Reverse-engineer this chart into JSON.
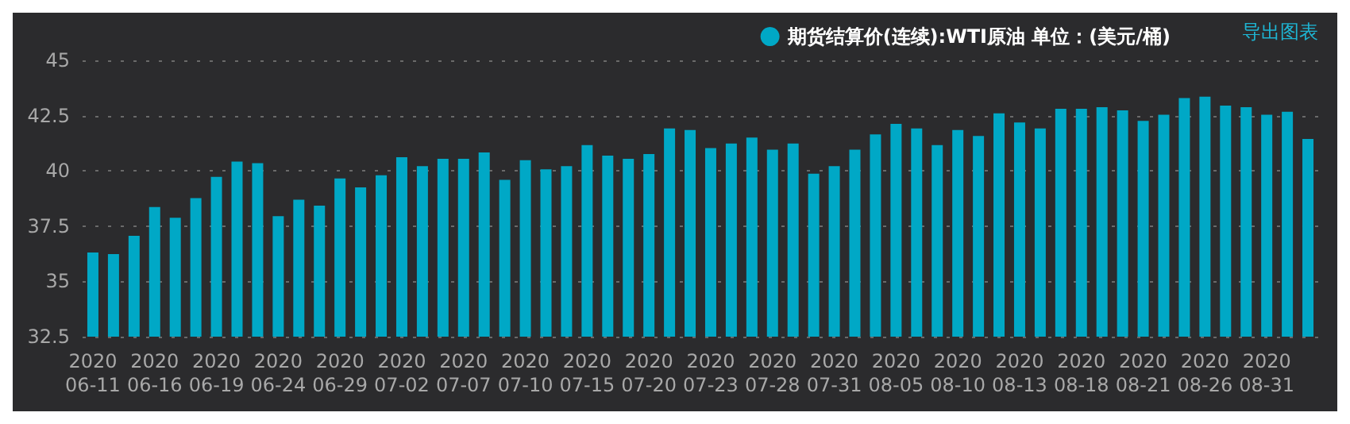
{
  "chart_data": {
    "type": "bar",
    "categories": [
      "2020\n06-11",
      null,
      null,
      "2020\n06-16",
      null,
      null,
      "2020\n06-19",
      null,
      null,
      "2020\n06-24",
      null,
      null,
      "2020\n06-29",
      null,
      null,
      "2020\n07-02",
      null,
      null,
      "2020\n07-07",
      null,
      null,
      "2020\n07-10",
      null,
      null,
      "2020\n07-15",
      null,
      null,
      "2020\n07-20",
      null,
      null,
      "2020\n07-23",
      null,
      null,
      "2020\n07-28",
      null,
      null,
      "2020\n07-31",
      null,
      null,
      "2020\n08-05",
      null,
      null,
      "2020\n08-10",
      null,
      null,
      "2020\n08-13",
      null,
      null,
      "2020\n08-18",
      null,
      null,
      "2020\n08-21",
      null,
      null,
      "2020\n08-26",
      null,
      null,
      "2020\n08-31",
      null,
      null
    ],
    "series": [
      {
        "name": "期货结算价(连续):WTI原油 单位：(美元/桶)",
        "color": "#00a8c6",
        "values": [
          36.31,
          36.24,
          37.06,
          38.36,
          37.88,
          38.77,
          39.73,
          40.42,
          40.35,
          37.95,
          38.7,
          38.43,
          39.66,
          39.25,
          39.8,
          40.62,
          40.21,
          40.55,
          40.55,
          40.83,
          39.59,
          40.48,
          40.07,
          40.21,
          41.17,
          40.69,
          40.55,
          40.76,
          41.92,
          41.85,
          41.03,
          41.24,
          41.51,
          40.96,
          41.24,
          39.87,
          40.21,
          40.96,
          41.65,
          42.13,
          41.92,
          41.17,
          41.85,
          41.58,
          42.6,
          42.19,
          41.92,
          42.81,
          42.81,
          42.88,
          42.74,
          42.26,
          42.54,
          43.29,
          43.36,
          42.95,
          42.88,
          42.54,
          42.67,
          41.44
        ]
      }
    ],
    "ylim": [
      32.5,
      45
    ],
    "yticks": [
      32.5,
      35,
      37.5,
      40,
      42.5,
      45
    ],
    "grid": "y",
    "legend": "top right",
    "annotations": [
      "导出图表"
    ]
  }
}
